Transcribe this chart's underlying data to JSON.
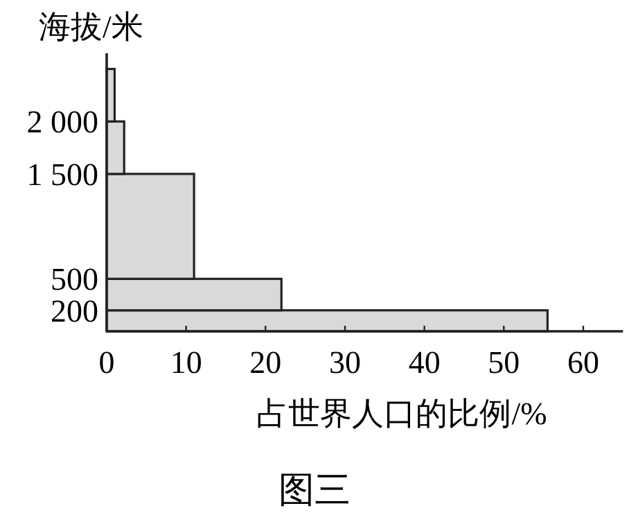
{
  "chart_data": {
    "type": "histogram",
    "orientation": "horizontal",
    "ylabel": "海拔/米",
    "xlabel": "占世界人口的比例/%",
    "bins": [
      0,
      200,
      500,
      1500,
      2000,
      2500
    ],
    "values": [
      55.5,
      22,
      11,
      2.2,
      1
    ],
    "color": "#d9d9d9",
    "xlim": [
      0,
      65
    ],
    "xticks": [
      0,
      10,
      20,
      30,
      40,
      50,
      60
    ],
    "ylim": [
      0,
      2650
    ],
    "yticks": [
      200,
      500,
      {
        "value": 1500,
        "label": "1 500"
      },
      {
        "value": 2000,
        "label": "2 000"
      }
    ],
    "annotations": [
      "图三"
    ]
  }
}
